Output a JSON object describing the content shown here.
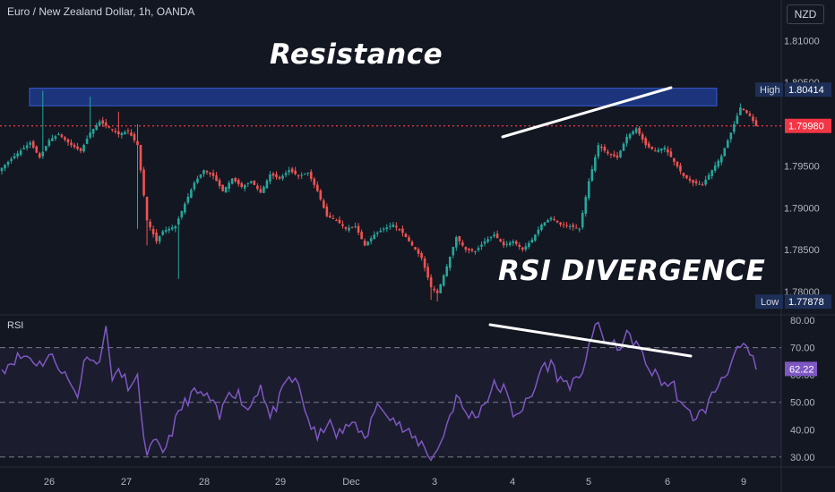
{
  "header": {
    "title": "Euro / New Zealand Dollar, 1h, OANDA",
    "currency": "NZD"
  },
  "annotations": {
    "resistance": "Resistance",
    "divergence": "RSI DIVERGENCE"
  },
  "colors": {
    "background": "#131722",
    "up": "#26a69a",
    "down": "#ef5350",
    "rsi_line": "#7e57c2",
    "rsi_band": "#7e57c2",
    "resistance_zone": "#1f3f99",
    "current_price": "#f23645",
    "label_blue": "#1e2f57"
  },
  "chart_data": [
    {
      "type": "candlestick",
      "title": "Euro / New Zealand Dollar, 1h, OANDA",
      "ylim": [
        1.7772,
        1.8125
      ],
      "y_ticks": [
        "1.81000",
        "1.80500",
        "1.79500",
        "1.79000",
        "1.78500",
        "1.78000"
      ],
      "x_ticks": [
        "26",
        "27",
        "28",
        "29",
        "Dec",
        "3",
        "4",
        "5",
        "6",
        "9"
      ],
      "price_labels": {
        "high_label": "High",
        "high": "1.80414",
        "current": "1.79980",
        "low_label": "Low",
        "low": "1.77878"
      },
      "resistance_zone": [
        1.8022,
        1.8043
      ],
      "anchor_closes": [
        [
          0,
          1.7948
        ],
        [
          4,
          1.7962
        ],
        [
          9,
          1.7978
        ],
        [
          12,
          1.796
        ],
        [
          15,
          1.7981
        ],
        [
          18,
          1.7988
        ],
        [
          22,
          1.7975
        ],
        [
          25,
          1.7968
        ],
        [
          28,
          1.799
        ],
        [
          31,
          1.8003
        ],
        [
          34,
          1.7996
        ],
        [
          37,
          1.7988
        ],
        [
          40,
          1.7992
        ],
        [
          43,
          1.7975
        ],
        [
          46,
          1.7885
        ],
        [
          49,
          1.786
        ],
        [
          51,
          1.7872
        ],
        [
          55,
          1.7878
        ],
        [
          58,
          1.7905
        ],
        [
          61,
          1.793
        ],
        [
          64,
          1.7945
        ],
        [
          67,
          1.7938
        ],
        [
          70,
          1.792
        ],
        [
          73,
          1.7935
        ],
        [
          76,
          1.7925
        ],
        [
          79,
          1.7932
        ],
        [
          82,
          1.7918
        ],
        [
          85,
          1.794
        ],
        [
          88,
          1.7935
        ],
        [
          91,
          1.7945
        ],
        [
          94,
          1.7938
        ],
        [
          97,
          1.7942
        ],
        [
          100,
          1.792
        ],
        [
          103,
          1.789
        ],
        [
          106,
          1.7885
        ],
        [
          109,
          1.7875
        ],
        [
          112,
          1.7878
        ],
        [
          115,
          1.7855
        ],
        [
          118,
          1.7868
        ],
        [
          121,
          1.7875
        ],
        [
          124,
          1.788
        ],
        [
          127,
          1.787
        ],
        [
          130,
          1.7855
        ],
        [
          133,
          1.784
        ],
        [
          136,
          1.7805
        ],
        [
          138,
          1.7798
        ],
        [
          141,
          1.783
        ],
        [
          144,
          1.7865
        ],
        [
          147,
          1.785
        ],
        [
          150,
          1.7848
        ],
        [
          153,
          1.786
        ],
        [
          156,
          1.7868
        ],
        [
          159,
          1.7855
        ],
        [
          162,
          1.786
        ],
        [
          165,
          1.785
        ],
        [
          168,
          1.7862
        ],
        [
          171,
          1.788
        ],
        [
          174,
          1.7888
        ],
        [
          177,
          1.788
        ],
        [
          180,
          1.7878
        ],
        [
          183,
          1.7875
        ],
        [
          186,
          1.7932
        ],
        [
          189,
          1.7975
        ],
        [
          192,
          1.7965
        ],
        [
          195,
          1.796
        ],
        [
          198,
          1.7985
        ],
        [
          201,
          1.7995
        ],
        [
          204,
          1.7975
        ],
        [
          207,
          1.7968
        ],
        [
          210,
          1.7972
        ],
        [
          213,
          1.7955
        ],
        [
          216,
          1.7938
        ],
        [
          219,
          1.793
        ],
        [
          222,
          1.7928
        ],
        [
          225,
          1.7945
        ],
        [
          228,
          1.7962
        ],
        [
          231,
          1.799
        ],
        [
          234,
          1.802
        ],
        [
          237,
          1.801
        ],
        [
          239,
          1.7998
        ]
      ],
      "wick_extremes": [
        [
          13,
          1.804,
          null
        ],
        [
          28,
          1.8033,
          null
        ],
        [
          37,
          1.8015,
          null
        ],
        [
          43,
          1.8,
          1.7875
        ],
        [
          46,
          null,
          1.7855
        ],
        [
          56,
          null,
          1.7815
        ],
        [
          136,
          null,
          1.779
        ],
        [
          138,
          null,
          1.7788
        ],
        [
          234,
          1.8025,
          null
        ]
      ]
    },
    {
      "type": "line",
      "title": "RSI",
      "ylim": [
        27,
        82
      ],
      "y_ticks": [
        "80.00",
        "70.00",
        "60.00",
        "50.00",
        "40.00",
        "30.00"
      ],
      "band": [
        30,
        70
      ],
      "current_value": "62.22",
      "anchor_values": [
        [
          0,
          62
        ],
        [
          4,
          66
        ],
        [
          8,
          67
        ],
        [
          12,
          64
        ],
        [
          15,
          67
        ],
        [
          18,
          64
        ],
        [
          22,
          56
        ],
        [
          24,
          53
        ],
        [
          27,
          69
        ],
        [
          30,
          63
        ],
        [
          33,
          76
        ],
        [
          35,
          60
        ],
        [
          38,
          60
        ],
        [
          41,
          55
        ],
        [
          43,
          58
        ],
        [
          46,
          29
        ],
        [
          48,
          35
        ],
        [
          51,
          32
        ],
        [
          54,
          40
        ],
        [
          57,
          48
        ],
        [
          60,
          53
        ],
        [
          63,
          53
        ],
        [
          66,
          51
        ],
        [
          69,
          44
        ],
        [
          72,
          55
        ],
        [
          75,
          53
        ],
        [
          78,
          47
        ],
        [
          82,
          57
        ],
        [
          85,
          44
        ],
        [
          88,
          51
        ],
        [
          91,
          59
        ],
        [
          94,
          56
        ],
        [
          97,
          44
        ],
        [
          100,
          36
        ],
        [
          103,
          43
        ],
        [
          106,
          38
        ],
        [
          109,
          40
        ],
        [
          112,
          44
        ],
        [
          115,
          35
        ],
        [
          118,
          47
        ],
        [
          121,
          49
        ],
        [
          124,
          44
        ],
        [
          127,
          40
        ],
        [
          130,
          37
        ],
        [
          133,
          35
        ],
        [
          136,
          30
        ],
        [
          138,
          32
        ],
        [
          141,
          42
        ],
        [
          144,
          52
        ],
        [
          147,
          46
        ],
        [
          150,
          45
        ],
        [
          153,
          50
        ],
        [
          156,
          56
        ],
        [
          159,
          55
        ],
        [
          162,
          46
        ],
        [
          165,
          48
        ],
        [
          168,
          52
        ],
        [
          171,
          63
        ],
        [
          174,
          64
        ],
        [
          177,
          58
        ],
        [
          180,
          57
        ],
        [
          183,
          57
        ],
        [
          186,
          72
        ],
        [
          189,
          78
        ],
        [
          192,
          71
        ],
        [
          195,
          70
        ],
        [
          198,
          74
        ],
        [
          201,
          72
        ],
        [
          204,
          64
        ],
        [
          207,
          60
        ],
        [
          210,
          57
        ],
        [
          213,
          56
        ],
        [
          216,
          47
        ],
        [
          219,
          45
        ],
        [
          222,
          46
        ],
        [
          225,
          52
        ],
        [
          228,
          59
        ],
        [
          231,
          64
        ],
        [
          234,
          70
        ],
        [
          237,
          68
        ],
        [
          239,
          62
        ]
      ]
    }
  ]
}
